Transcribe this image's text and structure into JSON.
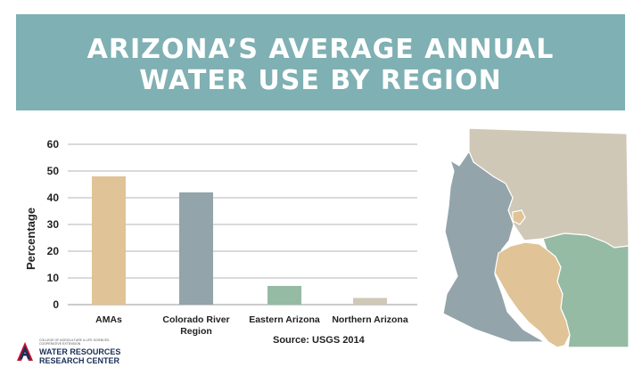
{
  "banner": {
    "title_line1": "ARIZONA’S AVERAGE ANNUAL",
    "title_line2": "WATER USE BY REGION"
  },
  "chart_data": {
    "type": "bar",
    "categories": [
      "AMAs",
      "Colorado River Region",
      "Eastern Arizona",
      "Northern Arizona"
    ],
    "values": [
      48,
      42,
      7,
      2.5
    ],
    "bar_colors": [
      "#e0c396",
      "#93a4aa",
      "#95bba4",
      "#cfc8b6"
    ],
    "ylabel": "Percentage",
    "xlabel": "",
    "ylim": [
      0,
      60
    ],
    "yticks": [
      0,
      10,
      20,
      30,
      40,
      50,
      60
    ],
    "grid": true
  },
  "source": "Source: USGS 2014",
  "logo": {
    "line_small1": "COLLEGE OF AGRICULTURE & LIFE SCIENCES",
    "line_small2": "COOPERATIVE EXTENSION",
    "line1": "WATER RESOURCES",
    "line2": "RESEARCH CENTER"
  },
  "map_colors": {
    "amas": "#e0c396",
    "colorado": "#93a4aa",
    "eastern": "#95bba4",
    "northern": "#cfc8b6"
  }
}
